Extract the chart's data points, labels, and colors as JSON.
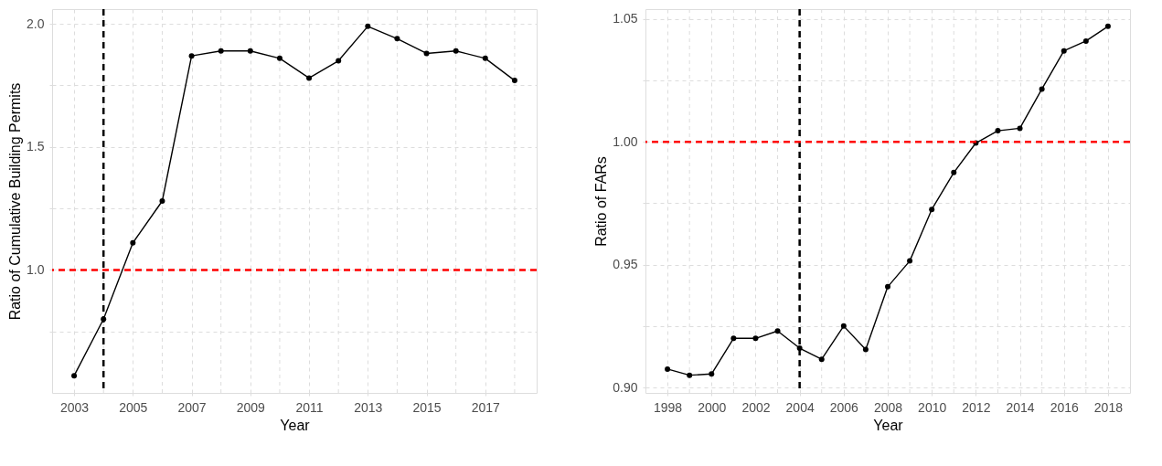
{
  "chart_data": [
    {
      "type": "line",
      "xlabel": "Year",
      "ylabel": "Ratio of Cumulative Building Permits",
      "x": [
        2003,
        2004,
        2005,
        2006,
        2007,
        2008,
        2009,
        2010,
        2011,
        2012,
        2013,
        2014,
        2015,
        2016,
        2017,
        2018
      ],
      "series": [
        {
          "color": "#000000",
          "values": [
            0.57,
            0.8,
            1.11,
            1.28,
            1.87,
            1.89,
            1.89,
            1.86,
            1.78,
            1.85,
            1.99,
            1.94,
            1.88,
            1.89,
            1.86,
            1.77
          ]
        }
      ],
      "xlim": [
        2002.25,
        2018.75
      ],
      "xticks": [
        2003,
        {
          "value": 2004,
          "label": null
        },
        2005,
        {
          "value": 2006,
          "label": null
        },
        2007,
        {
          "value": 2008,
          "label": null
        },
        2009,
        {
          "value": 2010,
          "label": null
        },
        2011,
        {
          "value": 2012,
          "label": null
        },
        2013,
        {
          "value": 2014,
          "label": null
        },
        2015,
        {
          "value": 2016,
          "label": null
        },
        2017,
        {
          "value": 2018,
          "label": null
        }
      ],
      "ylim": [
        0.5,
        2.06
      ],
      "yticks": [
        {
          "value": 0.75,
          "label": null
        },
        {
          "value": 1,
          "label": "1.0"
        },
        {
          "value": 1.25,
          "label": null
        },
        1.5,
        {
          "value": 1.75,
          "label": null
        },
        {
          "value": 2,
          "label": "2.0"
        }
      ],
      "ref_lines": [
        {
          "axis": "x",
          "value": 2004,
          "color": "#000000",
          "line_style": "dashed"
        },
        {
          "axis": "y",
          "value": 1.0,
          "color": "#ff0000",
          "line_style": "dashed"
        }
      ],
      "grid": true,
      "marker": "circle",
      "line_style": "solid"
    },
    {
      "type": "line",
      "xlabel": "Year",
      "ylabel": "Ratio of FARs",
      "x": [
        1998,
        1999,
        2000,
        2001,
        2002,
        2003,
        2004,
        2005,
        2006,
        2007,
        2008,
        2009,
        2010,
        2011,
        2012,
        2013,
        2014,
        2015,
        2016,
        2017,
        2018
      ],
      "series": [
        {
          "color": "#000000",
          "values": [
            0.9075,
            0.905,
            0.9055,
            0.92,
            0.92,
            0.923,
            0.916,
            0.9115,
            0.925,
            0.9155,
            0.941,
            0.9515,
            0.9725,
            0.9875,
            0.9995,
            1.0045,
            1.0055,
            1.0215,
            1.037,
            1.041,
            1.047
          ]
        }
      ],
      "xlim": [
        1997,
        2019
      ],
      "xticks": [
        1998,
        {
          "value": 1999,
          "label": null
        },
        2000,
        {
          "value": 2001,
          "label": null
        },
        2002,
        {
          "value": 2003,
          "label": null
        },
        2004,
        {
          "value": 2005,
          "label": null
        },
        2006,
        {
          "value": 2007,
          "label": null
        },
        2008,
        {
          "value": 2009,
          "label": null
        },
        2010,
        {
          "value": 2011,
          "label": null
        },
        2012,
        {
          "value": 2013,
          "label": null
        },
        2014,
        {
          "value": 2015,
          "label": null
        },
        2016,
        {
          "value": 2017,
          "label": null
        },
        2018
      ],
      "ylim": [
        0.8978,
        1.054
      ],
      "yticks": [
        {
          "value": 0.9,
          "label": "0.90"
        },
        {
          "value": 0.925,
          "label": null
        },
        0.95,
        {
          "value": 0.975,
          "label": null
        },
        {
          "value": 1,
          "label": "1.00"
        },
        {
          "value": 1.025,
          "label": null
        },
        1.05
      ],
      "ref_lines": [
        {
          "axis": "x",
          "value": 2004,
          "color": "#000000",
          "line_style": "dashed"
        },
        {
          "axis": "y",
          "value": 1.0,
          "color": "#ff0000",
          "line_style": "dashed"
        }
      ],
      "grid": true,
      "marker": "circle",
      "line_style": "solid"
    }
  ]
}
